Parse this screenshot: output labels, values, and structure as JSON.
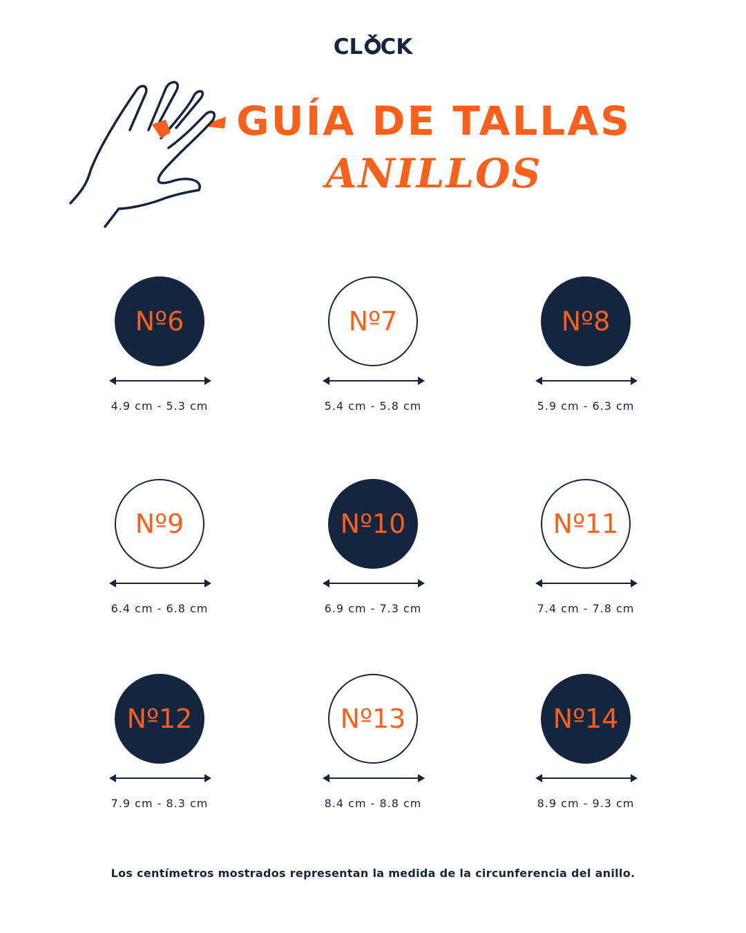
{
  "brand": {
    "logo_text": "CLOCK",
    "navy": "#14253f",
    "orange": "#f9601c"
  },
  "header": {
    "title": "GUÍA DE TALLAS",
    "subtitle": "ANILLOS",
    "illustration": "hand-with-ring-icon"
  },
  "sizes": [
    {
      "label": "Nº6",
      "range": "4.9 cm - 5.3 cm",
      "style": "dark"
    },
    {
      "label": "Nº7",
      "range": "5.4 cm - 5.8 cm",
      "style": "light"
    },
    {
      "label": "Nº8",
      "range": "5.9 cm - 6.3 cm",
      "style": "dark"
    },
    {
      "label": "Nº9",
      "range": "6.4 cm - 6.8 cm",
      "style": "light"
    },
    {
      "label": "Nº10",
      "range": "6.9 cm - 7.3 cm",
      "style": "dark"
    },
    {
      "label": "Nº11",
      "range": "7.4 cm - 7.8 cm",
      "style": "light"
    },
    {
      "label": "Nº12",
      "range": "7.9 cm - 8.3 cm",
      "style": "dark"
    },
    {
      "label": "Nº13",
      "range": "8.4 cm - 8.8 cm",
      "style": "light"
    },
    {
      "label": "Nº14",
      "range": "8.9 cm - 9.3 cm",
      "style": "dark"
    }
  ],
  "footer": {
    "note": "Los centímetros mostrados representan la medida de la circunferencia del anillo."
  }
}
